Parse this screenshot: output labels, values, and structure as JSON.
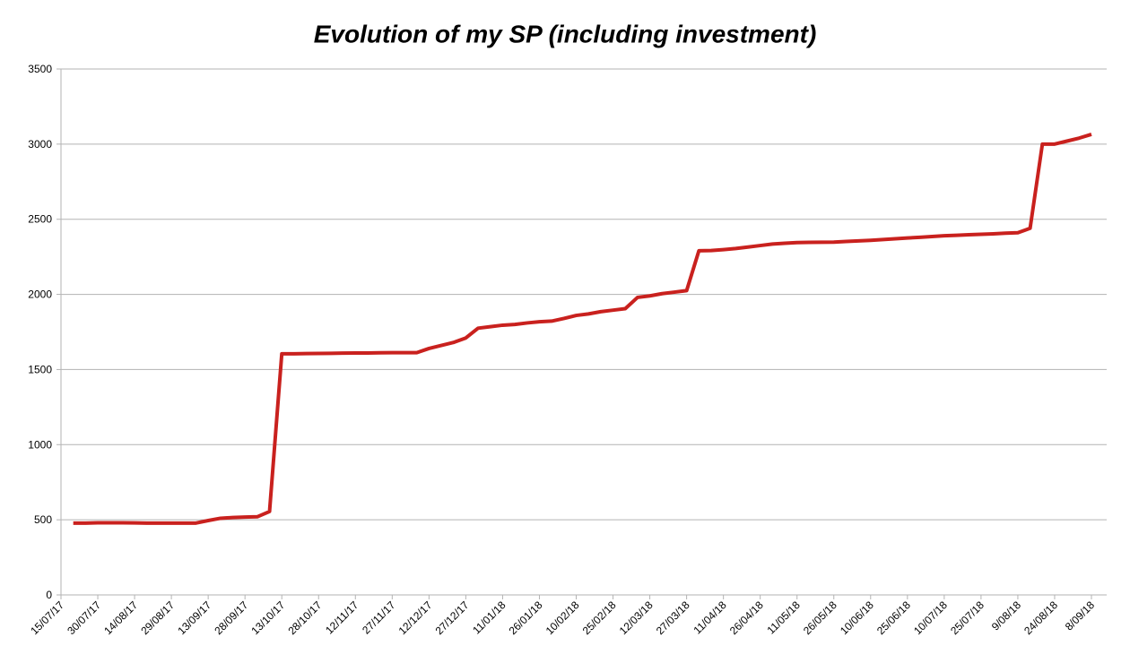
{
  "chart_data": {
    "type": "line",
    "title": "Evolution of my SP (including investment)",
    "categories": [
      "15/07/17",
      null,
      null,
      "30/07/17",
      null,
      null,
      "14/08/17",
      null,
      null,
      "29/08/17",
      null,
      null,
      "13/09/17",
      null,
      null,
      "28/09/17",
      null,
      null,
      "13/10/17",
      null,
      null,
      "28/10/17",
      null,
      null,
      "12/11/17",
      null,
      null,
      "27/11/17",
      null,
      null,
      "12/12/17",
      null,
      null,
      "27/12/17",
      null,
      null,
      "11/01/18",
      null,
      null,
      "26/01/18",
      null,
      null,
      "10/02/18",
      null,
      null,
      "25/02/18",
      null,
      null,
      "12/03/18",
      null,
      null,
      "27/03/18",
      null,
      null,
      "11/04/18",
      null,
      null,
      "26/04/18",
      null,
      null,
      "11/05/18",
      null,
      null,
      "26/05/18",
      null,
      null,
      "10/06/18",
      null,
      null,
      "25/06/18",
      null,
      null,
      "10/07/18",
      null,
      null,
      "25/07/18",
      null,
      null,
      "9/08/18",
      null,
      null,
      "24/08/18",
      null,
      null,
      "8/09/18"
    ],
    "series": [
      {
        "name": "SP",
        "color": "#c9211e",
        "values": [
          null,
          478,
          478,
          480,
          480,
          480,
          479,
          478,
          478,
          478,
          478,
          478,
          495,
          510,
          515,
          518,
          520,
          555,
          1605,
          1605,
          1606,
          1607,
          1608,
          1609,
          1610,
          1610,
          1611,
          1612,
          1612,
          1612,
          1640,
          1660,
          1680,
          1710,
          1775,
          1785,
          1795,
          1800,
          1810,
          1818,
          1822,
          1840,
          1860,
          1870,
          1885,
          1895,
          1905,
          1980,
          1990,
          2005,
          2015,
          2025,
          2290,
          2292,
          2298,
          2305,
          2315,
          2325,
          2335,
          2340,
          2345,
          2346,
          2347,
          2348,
          2352,
          2356,
          2360,
          2365,
          2370,
          2375,
          2380,
          2385,
          2390,
          2393,
          2397,
          2400,
          2403,
          2407,
          2410,
          2440,
          3000,
          3000,
          3020,
          3040,
          3065
        ]
      }
    ],
    "ylim": [
      0,
      3500
    ],
    "yticks": [
      0,
      500,
      1000,
      1500,
      2000,
      2500,
      3000,
      3500
    ],
    "grid": true
  }
}
